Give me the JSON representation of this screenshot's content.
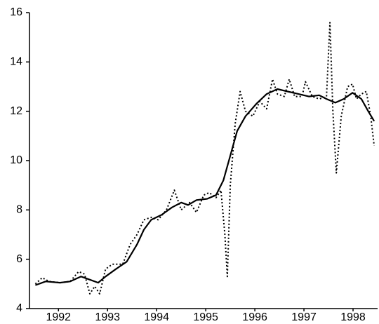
{
  "chart_data": {
    "type": "line",
    "xlim": [
      1991.91,
      1999.0
    ],
    "ylim": [
      4,
      16
    ],
    "yticks": [
      4,
      6,
      8,
      10,
      12,
      14,
      16
    ],
    "xticks": [
      {
        "value": 1992.5,
        "label": "1992"
      },
      {
        "value": 1993.5,
        "label": "1993"
      },
      {
        "value": 1994.5,
        "label": "1994"
      },
      {
        "value": 1995.5,
        "label": "1995"
      },
      {
        "value": 1996.5,
        "label": "1996"
      },
      {
        "value": 1997.5,
        "label": "1997"
      },
      {
        "value": 1998.5,
        "label": "1998"
      }
    ],
    "grid": false,
    "series": [
      {
        "color": "#000000",
        "style": "dotted",
        "x": [
          1992.03,
          1992.17,
          1992.31,
          1992.53,
          1992.74,
          1992.91,
          1993.03,
          1993.14,
          1993.24,
          1993.34,
          1993.46,
          1993.6,
          1993.81,
          1993.96,
          1994.1,
          1994.24,
          1994.39,
          1994.53,
          1994.7,
          1994.86,
          1995.0,
          1995.17,
          1995.31,
          1995.46,
          1995.57,
          1995.71,
          1995.81,
          1995.89,
          1995.94,
          1996.0,
          1996.1,
          1996.2,
          1996.31,
          1996.46,
          1996.6,
          1996.74,
          1996.86,
          1996.96,
          1997.1,
          1997.2,
          1997.31,
          1997.46,
          1997.53,
          1997.67,
          1997.81,
          1997.96,
          1998.03,
          1998.09,
          1998.16,
          1998.26,
          1998.39,
          1998.49,
          1998.57,
          1998.67,
          1998.77,
          1998.86,
          1998.93
        ],
        "values": [
          5.0,
          5.25,
          5.1,
          5.05,
          5.1,
          5.5,
          5.4,
          4.6,
          4.9,
          4.6,
          5.6,
          5.8,
          5.8,
          6.6,
          7.0,
          7.6,
          7.7,
          7.6,
          8.0,
          8.8,
          8.0,
          8.3,
          7.9,
          8.6,
          8.7,
          8.5,
          8.8,
          7.0,
          5.3,
          9.0,
          11.5,
          12.8,
          12.0,
          11.8,
          12.4,
          12.1,
          13.3,
          12.7,
          12.6,
          13.3,
          12.6,
          12.6,
          13.2,
          12.6,
          12.5,
          12.6,
          15.6,
          12.0,
          9.5,
          11.8,
          13.0,
          13.1,
          12.5,
          12.7,
          12.8,
          11.8,
          10.6
        ]
      },
      {
        "color": "#000000",
        "style": "solid",
        "x": [
          1992.03,
          1992.24,
          1992.53,
          1992.74,
          1992.96,
          1993.1,
          1993.31,
          1993.46,
          1993.67,
          1993.89,
          1994.1,
          1994.24,
          1994.39,
          1994.6,
          1994.81,
          1995.0,
          1995.14,
          1995.31,
          1995.53,
          1995.71,
          1995.86,
          1996.0,
          1996.14,
          1996.31,
          1996.53,
          1996.74,
          1996.96,
          1997.17,
          1997.39,
          1997.6,
          1997.81,
          1997.96,
          1998.14,
          1998.31,
          1998.49,
          1998.67,
          1998.81,
          1998.93
        ],
        "values": [
          4.95,
          5.1,
          5.05,
          5.1,
          5.3,
          5.2,
          5.05,
          5.3,
          5.6,
          5.9,
          6.6,
          7.2,
          7.6,
          7.8,
          8.1,
          8.3,
          8.2,
          8.4,
          8.45,
          8.6,
          9.2,
          10.2,
          11.2,
          11.8,
          12.3,
          12.7,
          12.9,
          12.8,
          12.7,
          12.6,
          12.65,
          12.5,
          12.35,
          12.5,
          12.75,
          12.5,
          12.0,
          11.6
        ]
      }
    ]
  }
}
